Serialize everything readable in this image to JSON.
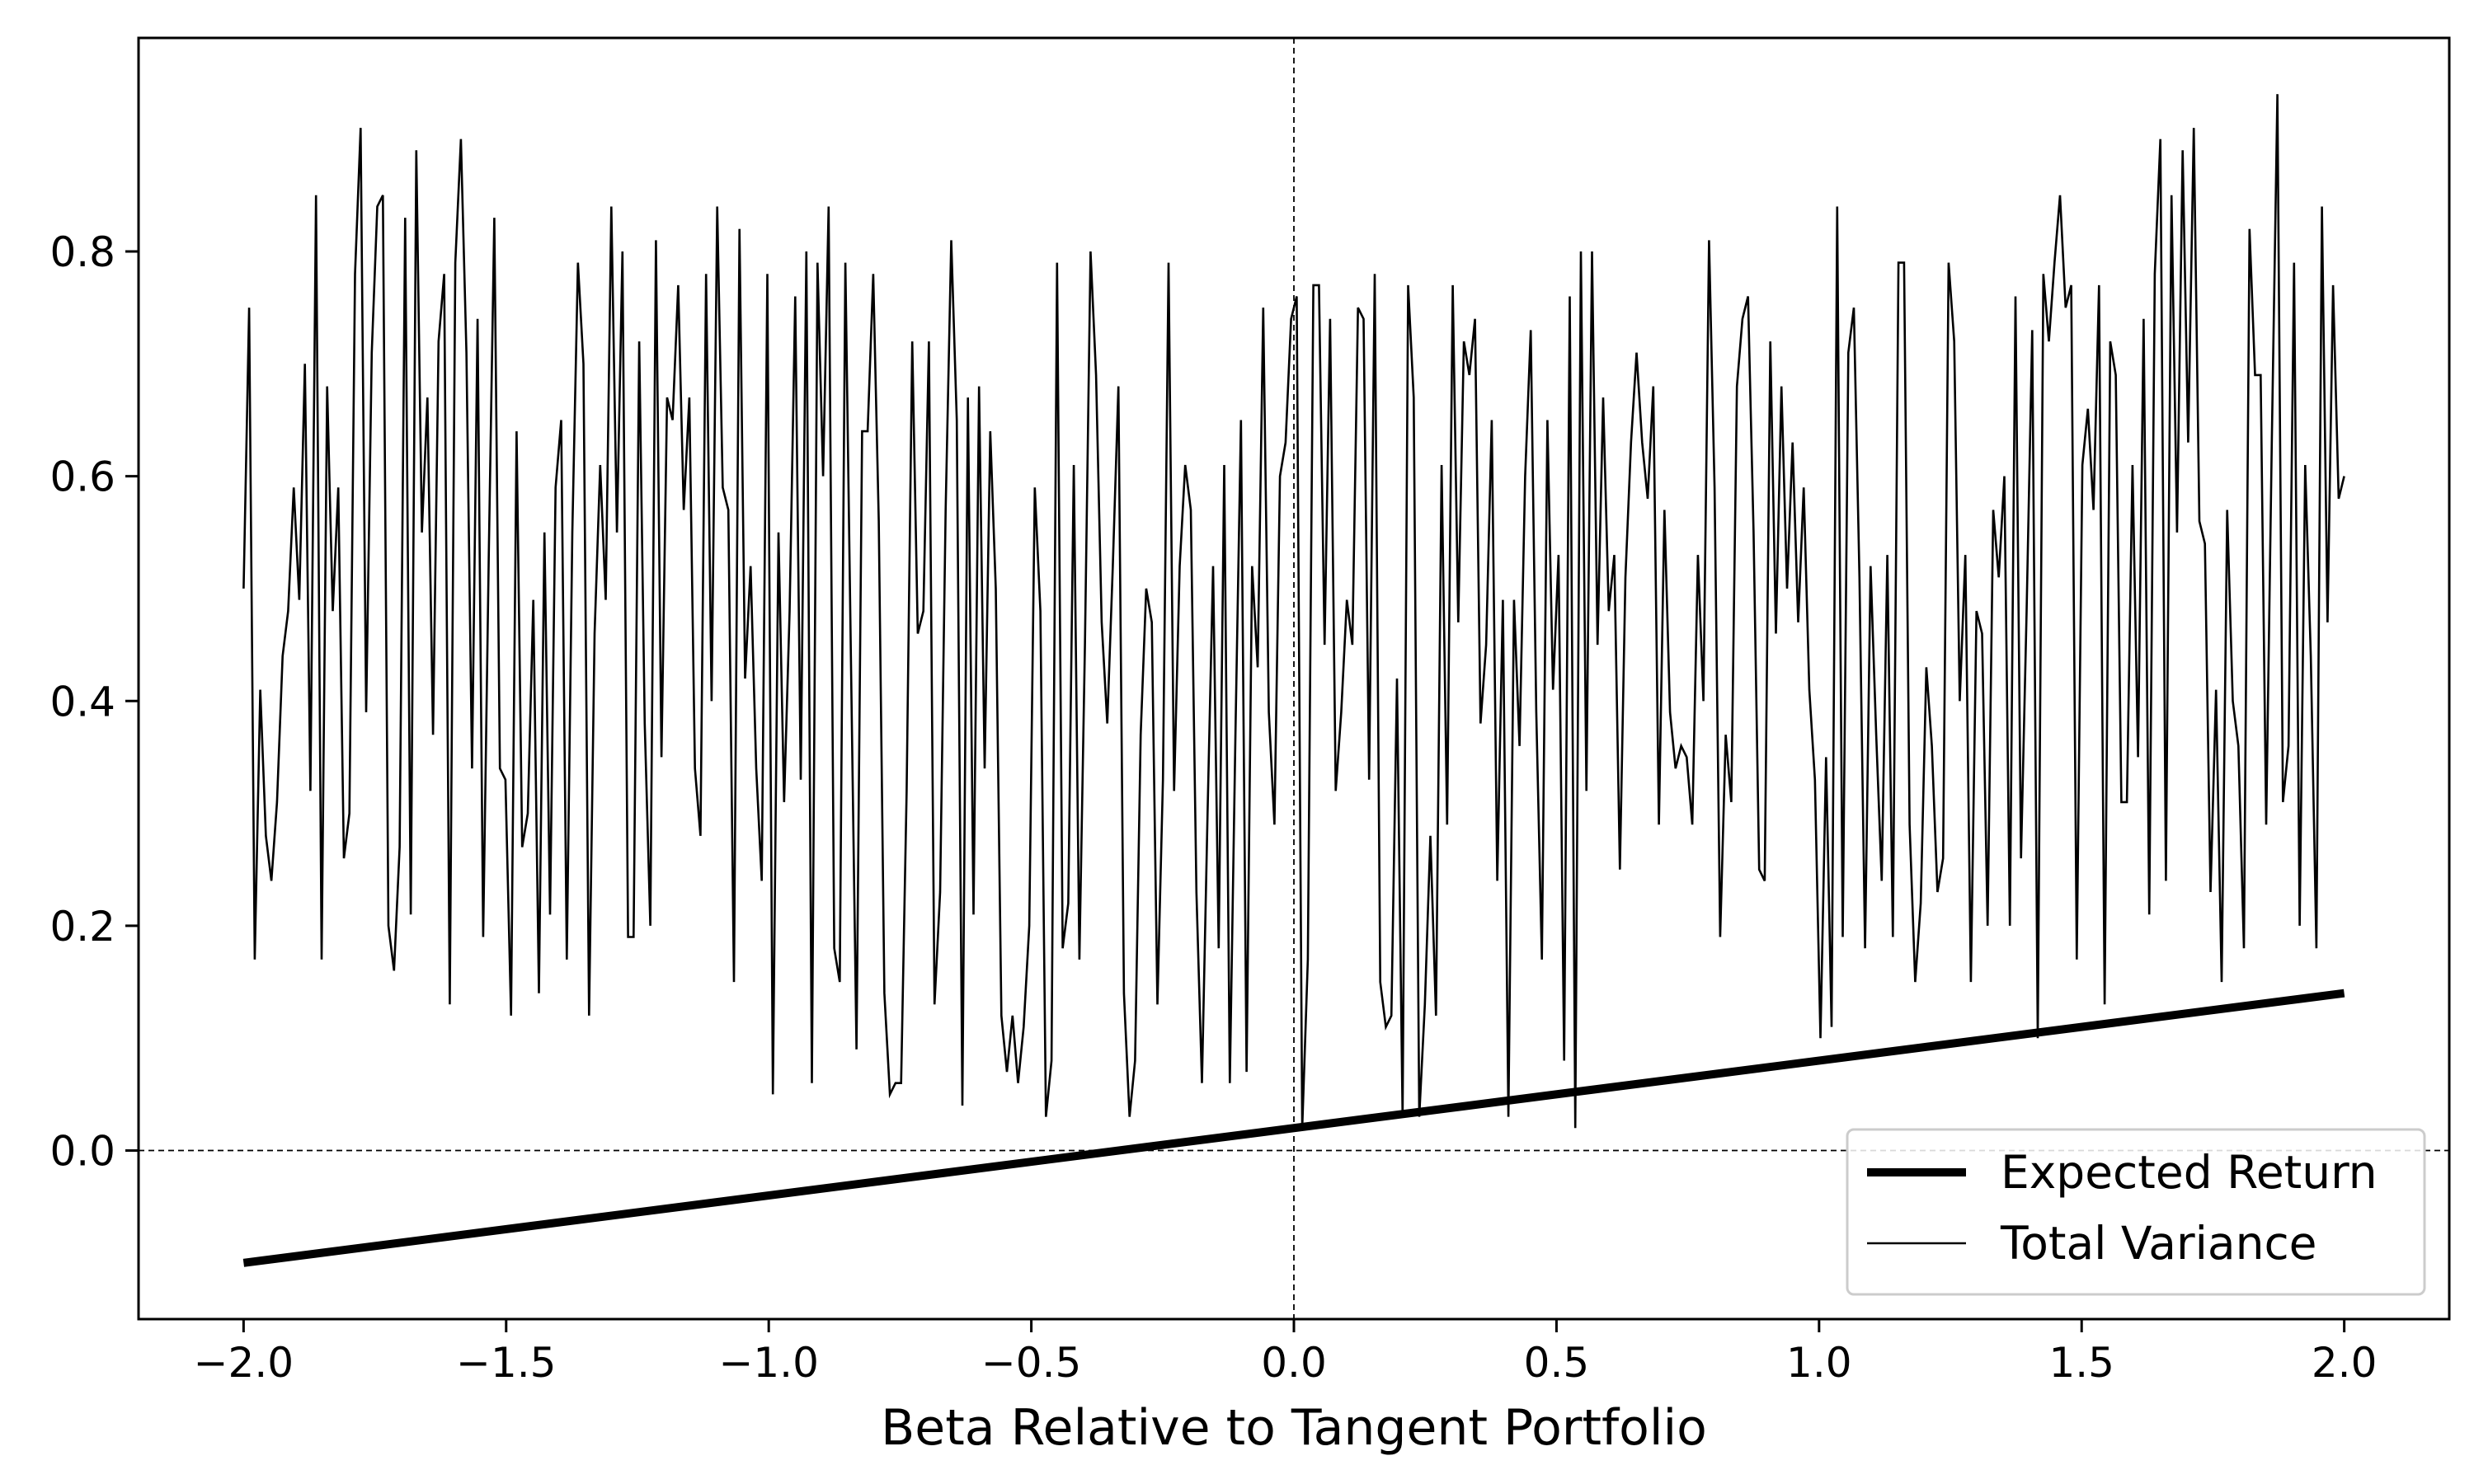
{
  "chart_data": {
    "type": "line",
    "title": "",
    "xlabel": "Beta Relative to Tangent Portfolio",
    "ylabel": "",
    "xlim": [
      -2.2,
      2.2
    ],
    "ylim": [
      -0.15,
      0.99
    ],
    "x_ticks": [
      -2.0,
      -1.5,
      -1.0,
      -0.5,
      0.0,
      0.5,
      1.0,
      1.5,
      2.0
    ],
    "x_tick_labels": [
      "−2.0",
      "−1.5",
      "−1.0",
      "−0.5",
      "0.0",
      "0.5",
      "1.0",
      "1.5",
      "2.0"
    ],
    "y_ticks": [
      0.0,
      0.2,
      0.4,
      0.6,
      0.8
    ],
    "y_tick_labels": [
      "0.0",
      "0.2",
      "0.4",
      "0.6",
      "0.8"
    ],
    "grid": false,
    "reference_lines": [
      {
        "axis": "x",
        "value": 0.0,
        "style": "dashed"
      },
      {
        "axis": "y",
        "value": 0.0,
        "style": "dashed"
      }
    ],
    "legend": {
      "position": "lower-right",
      "entries": [
        "Expected Return",
        "Total Variance"
      ]
    },
    "series": [
      {
        "name": "Expected Return",
        "color": "#000000",
        "line_weight": "thick",
        "x": [
          -2.0,
          2.0
        ],
        "y": [
          -0.1,
          0.14
        ]
      },
      {
        "name": "Total Variance",
        "color": "#000000",
        "line_weight": "thin",
        "x_start": -2.0,
        "x_end": 2.0,
        "y": [
          0.5,
          0.75,
          0.17,
          0.41,
          0.28,
          0.24,
          0.31,
          0.44,
          0.48,
          0.59,
          0.49,
          0.7,
          0.32,
          0.85,
          0.17,
          0.68,
          0.48,
          0.59,
          0.26,
          0.3,
          0.78,
          0.91,
          0.39,
          0.71,
          0.84,
          0.85,
          0.2,
          0.16,
          0.27,
          0.83,
          0.21,
          0.89,
          0.55,
          0.67,
          0.37,
          0.72,
          0.78,
          0.13,
          0.79,
          0.9,
          0.71,
          0.34,
          0.74,
          0.19,
          0.53,
          0.83,
          0.34,
          0.33,
          0.12,
          0.64,
          0.27,
          0.3,
          0.49,
          0.14,
          0.55,
          0.21,
          0.59,
          0.65,
          0.17,
          0.55,
          0.79,
          0.7,
          0.12,
          0.46,
          0.61,
          0.49,
          0.84,
          0.55,
          0.8,
          0.19,
          0.19,
          0.72,
          0.38,
          0.2,
          0.81,
          0.35,
          0.67,
          0.65,
          0.77,
          0.57,
          0.67,
          0.34,
          0.28,
          0.78,
          0.4,
          0.84,
          0.59,
          0.57,
          0.15,
          0.82,
          0.42,
          0.52,
          0.34,
          0.24,
          0.78,
          0.05,
          0.55,
          0.31,
          0.48,
          0.76,
          0.33,
          0.8,
          0.06,
          0.79,
          0.6,
          0.84,
          0.18,
          0.15,
          0.79,
          0.44,
          0.09,
          0.64,
          0.64,
          0.78,
          0.56,
          0.14,
          0.05,
          0.06,
          0.06,
          0.32,
          0.72,
          0.46,
          0.48,
          0.72,
          0.13,
          0.23,
          0.57,
          0.81,
          0.65,
          0.04,
          0.67,
          0.21,
          0.68,
          0.34,
          0.64,
          0.5,
          0.12,
          0.07,
          0.12,
          0.06,
          0.11,
          0.2,
          0.59,
          0.48,
          0.03,
          0.08,
          0.79,
          0.18,
          0.22,
          0.61,
          0.17,
          0.45,
          0.8,
          0.69,
          0.47,
          0.38,
          0.52,
          0.68,
          0.14,
          0.03,
          0.08,
          0.37,
          0.5,
          0.47,
          0.13,
          0.33,
          0.79,
          0.32,
          0.52,
          0.61,
          0.57,
          0.23,
          0.06,
          0.3,
          0.52,
          0.18,
          0.61,
          0.06,
          0.37,
          0.65,
          0.07,
          0.52,
          0.43,
          0.75,
          0.39,
          0.29,
          0.6,
          0.63,
          0.74,
          0.76,
          0.02,
          0.17,
          0.77,
          0.77,
          0.45,
          0.74,
          0.32,
          0.39,
          0.49,
          0.45,
          0.75,
          0.74,
          0.33,
          0.78,
          0.15,
          0.11,
          0.12,
          0.42,
          0.03,
          0.77,
          0.67,
          0.03,
          0.13,
          0.28,
          0.12,
          0.61,
          0.29,
          0.77,
          0.47,
          0.72,
          0.69,
          0.74,
          0.38,
          0.45,
          0.65,
          0.24,
          0.49,
          0.03,
          0.49,
          0.36,
          0.6,
          0.73,
          0.39,
          0.17,
          0.65,
          0.41,
          0.53,
          0.08,
          0.76,
          0.02,
          0.8,
          0.32,
          0.8,
          0.45,
          0.67,
          0.48,
          0.53,
          0.25,
          0.51,
          0.63,
          0.71,
          0.63,
          0.58,
          0.68,
          0.29,
          0.57,
          0.39,
          0.34,
          0.36,
          0.35,
          0.29,
          0.53,
          0.4,
          0.81,
          0.59,
          0.19,
          0.37,
          0.31,
          0.68,
          0.74,
          0.76,
          0.55,
          0.25,
          0.24,
          0.72,
          0.46,
          0.68,
          0.5,
          0.63,
          0.47,
          0.59,
          0.41,
          0.33,
          0.1,
          0.35,
          0.11,
          0.84,
          0.19,
          0.71,
          0.75,
          0.51,
          0.18,
          0.52,
          0.37,
          0.24,
          0.53,
          0.19,
          0.79,
          0.79,
          0.29,
          0.15,
          0.22,
          0.43,
          0.36,
          0.23,
          0.26,
          0.79,
          0.72,
          0.4,
          0.53,
          0.15,
          0.48,
          0.46,
          0.2,
          0.57,
          0.51,
          0.6,
          0.2,
          0.76,
          0.26,
          0.48,
          0.73,
          0.1,
          0.78,
          0.72,
          0.79,
          0.85,
          0.75,
          0.77,
          0.17,
          0.61,
          0.66,
          0.57,
          0.77,
          0.13,
          0.72,
          0.69,
          0.31,
          0.31,
          0.61,
          0.35,
          0.74,
          0.21,
          0.78,
          0.9,
          0.24,
          0.85,
          0.55,
          0.89,
          0.63,
          0.91,
          0.56,
          0.54,
          0.23,
          0.41,
          0.15,
          0.57,
          0.4,
          0.36,
          0.18,
          0.82,
          0.69,
          0.69,
          0.29,
          0.63,
          0.94,
          0.31,
          0.36,
          0.79,
          0.2,
          0.61,
          0.44,
          0.18,
          0.84,
          0.47,
          0.77,
          0.58,
          0.6
        ]
      }
    ]
  }
}
